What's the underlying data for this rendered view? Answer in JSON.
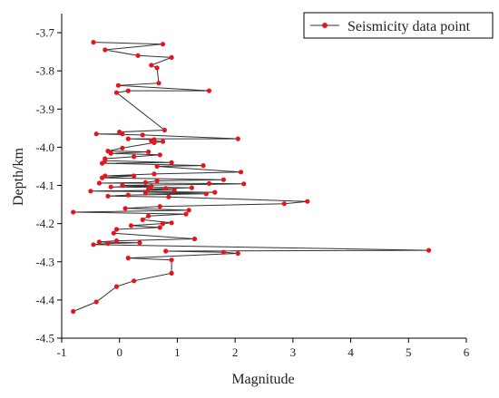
{
  "chart_data": {
    "type": "line",
    "xlabel": "Magnitude",
    "ylabel": "Depth/km",
    "xlim": [
      -1,
      6
    ],
    "ylim": [
      -4.5,
      -3.65
    ],
    "x_ticks": [
      -1,
      0,
      1,
      2,
      3,
      4,
      5,
      6
    ],
    "y_ticks": [
      -3.7,
      -3.8,
      -3.9,
      -4.0,
      -4.1,
      -4.2,
      -4.3,
      -4.4,
      -4.5
    ],
    "grid": false,
    "legend_position": "top-right",
    "colors": {
      "marker": "#e8141c",
      "line": "#333333",
      "axis": "#000000"
    },
    "series": [
      {
        "name": "Seismicity data point",
        "points": [
          [
            -0.45,
            -3.725
          ],
          [
            0.75,
            -3.73
          ],
          [
            -0.25,
            -3.745
          ],
          [
            0.32,
            -3.76
          ],
          [
            0.9,
            -3.765
          ],
          [
            0.55,
            -3.785
          ],
          [
            0.65,
            -3.792
          ],
          [
            0.68,
            -3.832
          ],
          [
            -0.02,
            -3.838
          ],
          [
            1.55,
            -3.852
          ],
          [
            0.15,
            -3.852
          ],
          [
            -0.05,
            -3.857
          ],
          [
            0.78,
            -3.955
          ],
          [
            0.0,
            -3.96
          ],
          [
            0.05,
            -3.965
          ],
          [
            -0.4,
            -3.965
          ],
          [
            0.4,
            -3.968
          ],
          [
            2.05,
            -3.978
          ],
          [
            0.15,
            -3.978
          ],
          [
            0.6,
            -3.98
          ],
          [
            0.55,
            -3.983
          ],
          [
            0.75,
            -3.985
          ],
          [
            0.6,
            -3.988
          ],
          [
            0.05,
            -4.002
          ],
          [
            -0.2,
            -4.01
          ],
          [
            0.5,
            -4.012
          ],
          [
            -0.15,
            -4.016
          ],
          [
            0.7,
            -4.02
          ],
          [
            0.25,
            -4.025
          ],
          [
            -0.25,
            -4.03
          ],
          [
            -0.25,
            -4.035
          ],
          [
            0.9,
            -4.04
          ],
          [
            -0.3,
            -4.042
          ],
          [
            1.45,
            -4.048
          ],
          [
            0.65,
            -4.05
          ],
          [
            2.1,
            -4.065
          ],
          [
            0.6,
            -4.07
          ],
          [
            -0.25,
            -4.075
          ],
          [
            0.25,
            -4.075
          ],
          [
            -0.3,
            -4.08
          ],
          [
            1.8,
            -4.085
          ],
          [
            0.65,
            -4.088
          ],
          [
            0.45,
            -4.092
          ],
          [
            -0.35,
            -4.094
          ],
          [
            1.55,
            -4.095
          ],
          [
            2.15,
            -4.096
          ],
          [
            0.05,
            -4.1
          ],
          [
            0.55,
            -4.102
          ],
          [
            -0.15,
            -4.104
          ],
          [
            1.25,
            -4.106
          ],
          [
            0.8,
            -4.108
          ],
          [
            0.5,
            -4.11
          ],
          [
            0.95,
            -4.112
          ],
          [
            -0.5,
            -4.115
          ],
          [
            1.65,
            -4.118
          ],
          [
            0.45,
            -4.12
          ],
          [
            1.5,
            -4.122
          ],
          [
            0.15,
            -4.125
          ],
          [
            -0.2,
            -4.128
          ],
          [
            0.85,
            -4.13
          ],
          [
            3.25,
            -4.142
          ],
          [
            2.85,
            -4.148
          ],
          [
            0.7,
            -4.155
          ],
          [
            0.1,
            -4.16
          ],
          [
            1.2,
            -4.165
          ],
          [
            -0.8,
            -4.17
          ],
          [
            1.15,
            -4.175
          ],
          [
            0.5,
            -4.18
          ],
          [
            0.4,
            -4.19
          ],
          [
            0.9,
            -4.198
          ],
          [
            0.75,
            -4.2
          ],
          [
            0.2,
            -4.205
          ],
          [
            0.7,
            -4.21
          ],
          [
            -0.05,
            -4.215
          ],
          [
            -0.1,
            -4.225
          ],
          [
            1.3,
            -4.24
          ],
          [
            -0.05,
            -4.245
          ],
          [
            -0.35,
            -4.248
          ],
          [
            0.35,
            -4.25
          ],
          [
            -0.2,
            -4.252
          ],
          [
            -0.45,
            -4.255
          ],
          [
            5.35,
            -4.27
          ],
          [
            0.8,
            -4.272
          ],
          [
            1.8,
            -4.275
          ],
          [
            2.05,
            -4.278
          ],
          [
            0.15,
            -4.29
          ],
          [
            0.9,
            -4.295
          ],
          [
            0.9,
            -4.33
          ],
          [
            0.25,
            -4.35
          ],
          [
            -0.05,
            -4.365
          ],
          [
            -0.4,
            -4.405
          ],
          [
            -0.8,
            -4.43
          ]
        ]
      }
    ]
  }
}
